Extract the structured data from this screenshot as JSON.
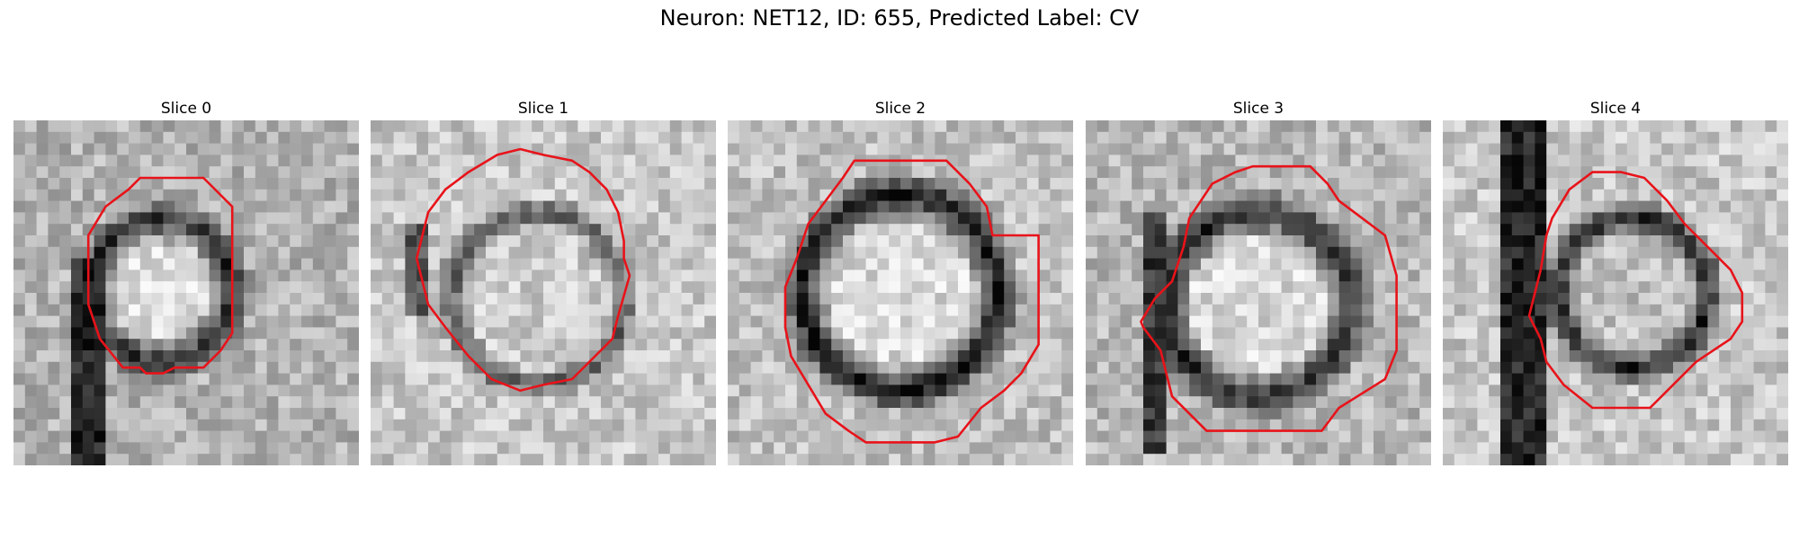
{
  "figure": {
    "title": "Neuron: NET12, ID: 655, Predicted Label: CV"
  },
  "colors": {
    "contour": "#e8131a",
    "background": "#ffffff",
    "text": "#000000"
  },
  "image_style": "grayscale microscopy slices, 30x30 pixel grid with red cell contour overlay",
  "panels": [
    {
      "title": "Slice 0"
    },
    {
      "title": "Slice 1"
    },
    {
      "title": "Slice 2"
    },
    {
      "title": "Slice 3"
    },
    {
      "title": "Slice 4"
    }
  ]
}
